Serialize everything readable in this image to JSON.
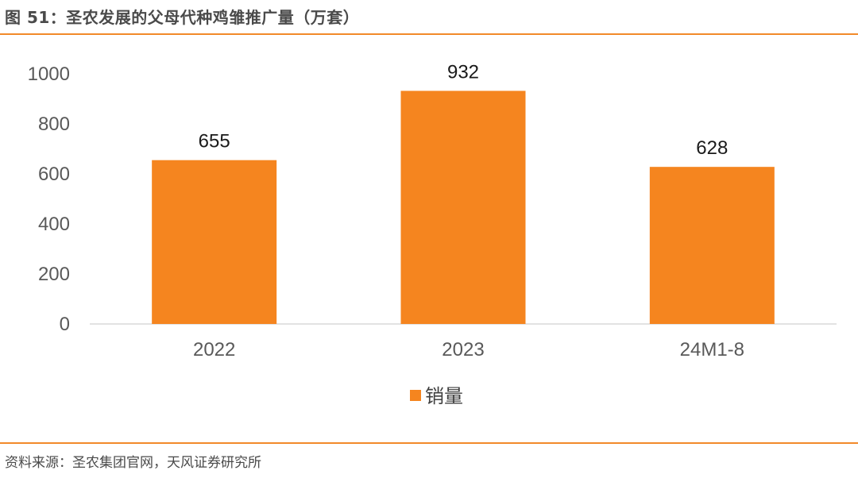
{
  "header": {
    "title": "图 51：圣农发展的父母代种鸡雏推广量（万套）"
  },
  "footer": {
    "source": "资料来源：圣农集团官网，天风证券研究所"
  },
  "colors": {
    "accent": "#f28a2a",
    "bar": "#f5851f",
    "axis": "#d9d9d9"
  },
  "chart_data": {
    "type": "bar",
    "title": "图 51：圣农发展的父母代种鸡雏推广量（万套）",
    "categories": [
      "2022",
      "2023",
      "24M1-8"
    ],
    "series": [
      {
        "name": "销量",
        "values": [
          655,
          932,
          628
        ]
      }
    ],
    "ylim": [
      0,
      1000
    ],
    "yticks": [
      0,
      200,
      400,
      600,
      800,
      1000
    ],
    "grid": false,
    "legend": "bottom",
    "data_labels": true
  }
}
